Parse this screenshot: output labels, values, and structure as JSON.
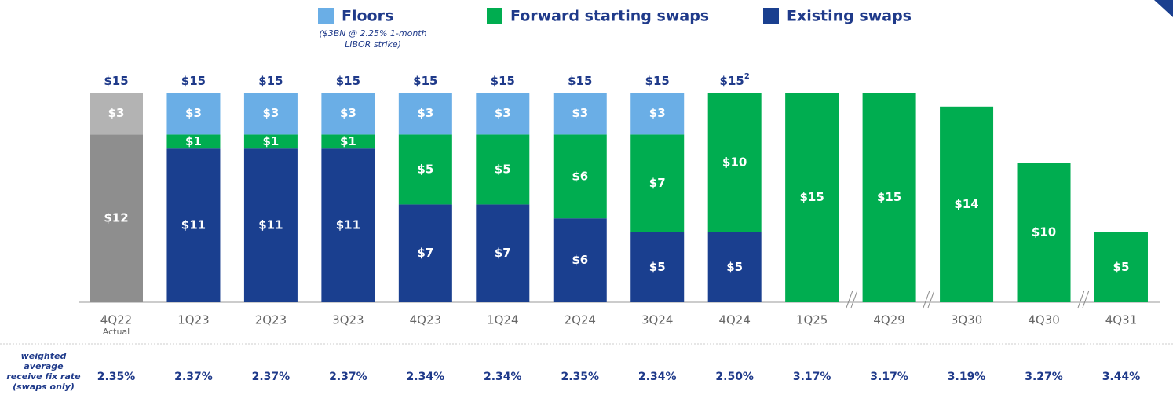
{
  "chart_data": {
    "type": "stacked-bar",
    "categories": [
      "4Q22",
      "1Q23",
      "2Q23",
      "3Q23",
      "4Q23",
      "1Q24",
      "2Q24",
      "3Q24",
      "4Q24",
      "1Q25",
      "4Q29",
      "3Q30",
      "4Q30",
      "4Q31"
    ],
    "category_subtitle": "Actual",
    "series": [
      {
        "name": "Floors",
        "color": "#6aaee6",
        "actual_color": "#b3b3b3",
        "note": "($3BN @ 2.25% 1-month LIBOR strike)",
        "values": [
          3,
          3,
          3,
          3,
          3,
          3,
          3,
          3,
          null,
          null,
          null,
          null,
          null,
          null
        ],
        "value_labels": [
          "$3",
          "$3",
          "$3",
          "$3",
          "$3",
          "$3",
          "$3",
          "$3",
          null,
          null,
          null,
          null,
          null,
          null
        ]
      },
      {
        "name": "Forward starting swaps",
        "color": "#00ad50",
        "actual_color": "#b3b3b3",
        "values": [
          null,
          1,
          1,
          1,
          5,
          5,
          6,
          7,
          10,
          15,
          15,
          14,
          10,
          5
        ],
        "value_labels": [
          null,
          "$1",
          "$1",
          "$1",
          "$5",
          "$5",
          "$6",
          "$7",
          "$10",
          "$15",
          "$15",
          "$14",
          "$10",
          "$5"
        ]
      },
      {
        "name": "Existing swaps",
        "color": "#1a3f8f",
        "actual_color": "#8e8e8e",
        "values": [
          12,
          11,
          11,
          11,
          7,
          7,
          6,
          5,
          5,
          null,
          null,
          null,
          null,
          null
        ],
        "value_labels": [
          "$12",
          "$11",
          "$11",
          "$11",
          "$7",
          "$7",
          "$6",
          "$5",
          "$5",
          null,
          null,
          null,
          null,
          null
        ]
      }
    ],
    "totals": [
      15,
      15,
      15,
      15,
      15,
      15,
      15,
      15,
      15,
      null,
      null,
      null,
      null,
      null
    ],
    "total_labels": [
      "$15",
      "$15",
      "$15",
      "$15",
      "$15",
      "$15",
      "$15",
      "$15",
      "$15",
      null,
      null,
      null,
      null,
      null
    ],
    "total_footnotes": [
      null,
      null,
      null,
      null,
      null,
      null,
      null,
      null,
      "2",
      null,
      null,
      null,
      null,
      null
    ],
    "ylim": [
      0,
      15
    ],
    "rate_label": "weighted average receive fix rate (swaps only)",
    "rates": [
      2.35,
      2.37,
      2.37,
      2.37,
      2.34,
      2.34,
      2.35,
      2.34,
      2.5,
      3.17,
      3.17,
      3.19,
      3.27,
      3.44
    ],
    "rate_labels": [
      "2.35%",
      "2.37%",
      "2.37%",
      "2.37%",
      "2.34%",
      "2.34%",
      "2.35%",
      "2.34%",
      "2.50%",
      "3.17%",
      "3.17%",
      "3.19%",
      "3.27%",
      "3.44%"
    ]
  }
}
